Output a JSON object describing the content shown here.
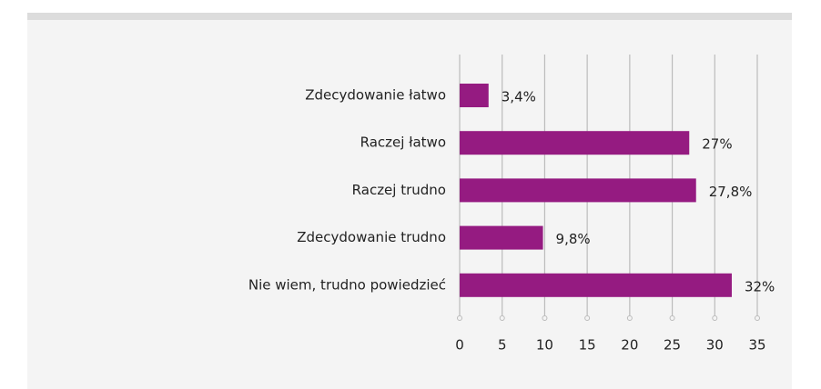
{
  "chart_data": {
    "type": "bar",
    "orientation": "horizontal",
    "categories": [
      "Zdecydowanie łatwo",
      "Raczej łatwo",
      "Raczej trudno",
      "Zdecydowanie trudno",
      "Nie wiem, trudno powiedzieć"
    ],
    "values": [
      3.4,
      27,
      27.8,
      9.8,
      32
    ],
    "value_labels": [
      "3,4%",
      "27%",
      "27,8%",
      "9,8%",
      "32%"
    ],
    "color": "#951b81",
    "xlim": [
      0,
      35
    ],
    "xticks": [
      0,
      5,
      10,
      15,
      20,
      25,
      30,
      35
    ],
    "grid": true
  }
}
